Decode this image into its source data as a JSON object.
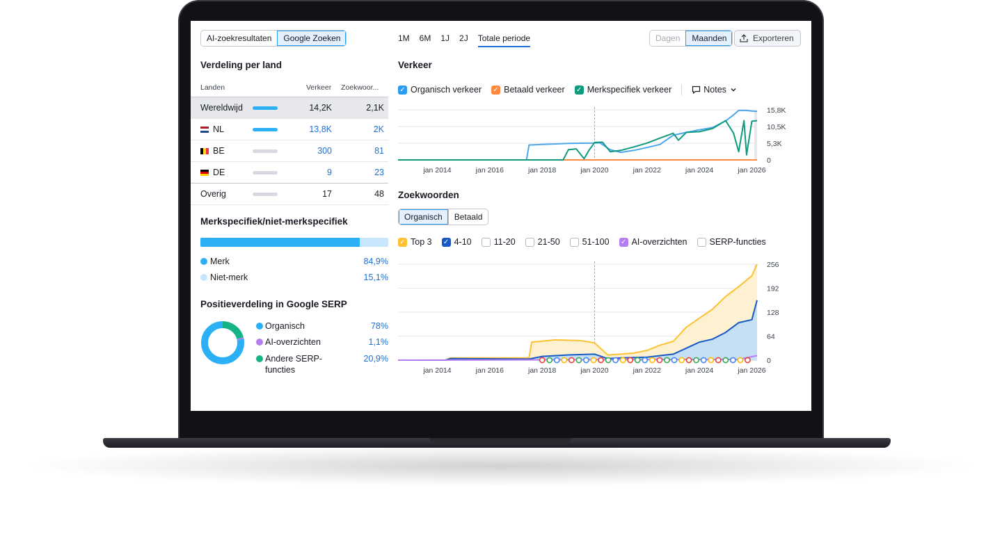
{
  "top": {
    "source_tabs": [
      "AI-zoekresultaten",
      "Google Zoeken"
    ],
    "source_active": "Google Zoeken",
    "periods": [
      "1M",
      "6M",
      "1J",
      "2J",
      "Totale periode"
    ],
    "period_active": "Totale periode",
    "granularity": [
      "Dagen",
      "Maanden"
    ],
    "granularity_active": "Maanden",
    "export_label": "Exporteren"
  },
  "countries": {
    "title": "Verdeling per land",
    "headers": {
      "country": "Landen",
      "traffic": "Verkeer",
      "keywords": "Zoekwoor..."
    },
    "rows": [
      {
        "name": "Wereldwijd",
        "traffic": "14,2K",
        "keywords": "2,1K",
        "link": false,
        "bar": "blue",
        "flag": ""
      },
      {
        "name": "NL",
        "traffic": "13,8K",
        "keywords": "2K",
        "link": true,
        "bar": "blue",
        "flag": "nl"
      },
      {
        "name": "BE",
        "traffic": "300",
        "keywords": "81",
        "link": true,
        "bar": "grey",
        "flag": "be"
      },
      {
        "name": "DE",
        "traffic": "9",
        "keywords": "23",
        "link": true,
        "bar": "grey",
        "flag": "de"
      },
      {
        "name": "Overig",
        "traffic": "17",
        "keywords": "48",
        "link": false,
        "bar": "grey",
        "flag": ""
      }
    ]
  },
  "brand": {
    "title": "Merkspecifiek/niet-merkspecifiek",
    "share_fraction": 0.849,
    "items": [
      {
        "label": "Merk",
        "value": "84,9%",
        "color": "#2bb0f5"
      },
      {
        "label": "Niet-merk",
        "value": "15,1%",
        "color": "#c6e7fb"
      }
    ]
  },
  "positions": {
    "title": "Positieverdeling in Google SERP",
    "items": [
      {
        "label": "Organisch",
        "value": "78%",
        "fraction": 0.78,
        "color": "#2bb0f5"
      },
      {
        "label": "AI-overzichten",
        "value": "1,1%",
        "fraction": 0.011,
        "color": "#b57ef0"
      },
      {
        "label": "Andere SERP-functies",
        "value": "20,9%",
        "fraction": 0.209,
        "color": "#15b386"
      }
    ]
  },
  "traffic": {
    "title": "Verkeer",
    "legend": [
      {
        "label": "Organisch verkeer",
        "color": "#2b9df0",
        "checked": true
      },
      {
        "label": "Betaald verkeer",
        "color": "#ff8a3d",
        "checked": true
      },
      {
        "label": "Merkspecifiek verkeer",
        "color": "#0f9a7d",
        "checked": true
      }
    ],
    "notes_label": "Notes"
  },
  "keywords": {
    "title": "Zoekwoorden",
    "tabs": [
      "Organisch",
      "Betaald"
    ],
    "tab_active": "Organisch",
    "filters": [
      {
        "label": "Top 3",
        "color": "#ffc132",
        "checked": true
      },
      {
        "label": "4-10",
        "color": "#1759c4",
        "checked": true
      },
      {
        "label": "11-20",
        "color": "",
        "checked": false
      },
      {
        "label": "21-50",
        "color": "",
        "checked": false
      },
      {
        "label": "51-100",
        "color": "",
        "checked": false
      },
      {
        "label": "AI-overzichten",
        "color": "#b57ef0",
        "checked": true
      },
      {
        "label": "SERP-functies",
        "color": "",
        "checked": false
      }
    ]
  },
  "chart_data": [
    {
      "type": "line",
      "title": "Verkeer",
      "x_ticks": [
        "jan 2014",
        "jan 2016",
        "jan 2018",
        "jan 2020",
        "jan 2022",
        "jan 2024",
        "jan 2026"
      ],
      "y_ticks": [
        "0",
        "5,3K",
        "10,5K",
        "15,8K"
      ],
      "ylim": [
        0,
        15800
      ],
      "x_range": [
        2012.5,
        2026.2
      ],
      "series": [
        {
          "name": "Organisch verkeer",
          "color": "#4ea6ea",
          "x": [
            2012.5,
            2017.4,
            2017.5,
            2018.0,
            2019.0,
            2020.0,
            2020.2,
            2020.6,
            2021.0,
            2021.5,
            2022.0,
            2022.5,
            2023.0,
            2023.5,
            2024.0,
            2024.5,
            2025.0,
            2025.3,
            2025.5,
            2025.8,
            2026.0,
            2026.2
          ],
          "y": [
            0,
            0,
            4700,
            4900,
            5200,
            5300,
            5400,
            3200,
            2400,
            3000,
            3900,
            4900,
            7800,
            8700,
            9500,
            10200,
            12300,
            14200,
            15600,
            15600,
            15400,
            15300
          ]
        },
        {
          "name": "Betaald verkeer",
          "color": "#ff8a3d",
          "x": [
            2012.5,
            2026.2
          ],
          "y": [
            0,
            0
          ]
        },
        {
          "name": "Merkspecifiek verkeer",
          "color": "#0f9a7d",
          "x": [
            2012.5,
            2018.8,
            2019.0,
            2019.3,
            2019.6,
            2019.8,
            2020.0,
            2020.3,
            2020.6,
            2021.0,
            2021.5,
            2022.0,
            2022.5,
            2023.0,
            2023.2,
            2023.5,
            2024.0,
            2024.5,
            2025.0,
            2025.3,
            2025.5,
            2025.7,
            2025.8,
            2026.0,
            2026.2
          ],
          "y": [
            0,
            0,
            3200,
            3500,
            400,
            3200,
            5500,
            5600,
            2600,
            3000,
            4100,
            5300,
            6900,
            8400,
            6200,
            8700,
            8900,
            9900,
            12400,
            8500,
            2600,
            12400,
            1600,
            12200,
            12400
          ]
        }
      ]
    },
    {
      "type": "area",
      "title": "Zoekwoorden",
      "x_ticks": [
        "jan 2014",
        "jan 2016",
        "jan 2018",
        "jan 2020",
        "jan 2022",
        "jan 2024",
        "jan 2026"
      ],
      "y_ticks": [
        "0",
        "64",
        "128",
        "192",
        "256"
      ],
      "ylim": [
        0,
        256
      ],
      "x_range": [
        2012.5,
        2026.2
      ],
      "series": [
        {
          "name": "Top 3",
          "color": "#ffc132",
          "x": [
            2012.5,
            2014.3,
            2014.5,
            2017.5,
            2017.6,
            2018.5,
            2019.5,
            2020.0,
            2020.5,
            2021.0,
            2021.5,
            2022.0,
            2022.5,
            2023.0,
            2023.5,
            2024.0,
            2024.5,
            2025.0,
            2025.5,
            2026.0,
            2026.2
          ],
          "y": [
            0,
            0,
            6,
            6,
            48,
            54,
            52,
            46,
            14,
            16,
            19,
            26,
            40,
            50,
            88,
            112,
            136,
            170,
            196,
            225,
            256
          ]
        },
        {
          "name": "4-10",
          "color": "#1759c4",
          "x": [
            2012.5,
            2014.3,
            2014.5,
            2017.5,
            2018.0,
            2019.0,
            2020.0,
            2020.5,
            2021.0,
            2021.5,
            2022.0,
            2022.5,
            2023.0,
            2023.5,
            2024.0,
            2024.5,
            2025.0,
            2025.5,
            2026.0,
            2026.2
          ],
          "y": [
            0,
            0,
            4,
            3,
            10,
            14,
            16,
            4,
            6,
            7,
            8,
            12,
            16,
            32,
            48,
            56,
            74,
            100,
            108,
            160
          ]
        },
        {
          "name": "AI-overzichten",
          "color": "#b57ef0",
          "x": [
            2012.5,
            2025.5,
            2026.2
          ],
          "y": [
            0,
            2,
            12
          ]
        }
      ]
    }
  ]
}
